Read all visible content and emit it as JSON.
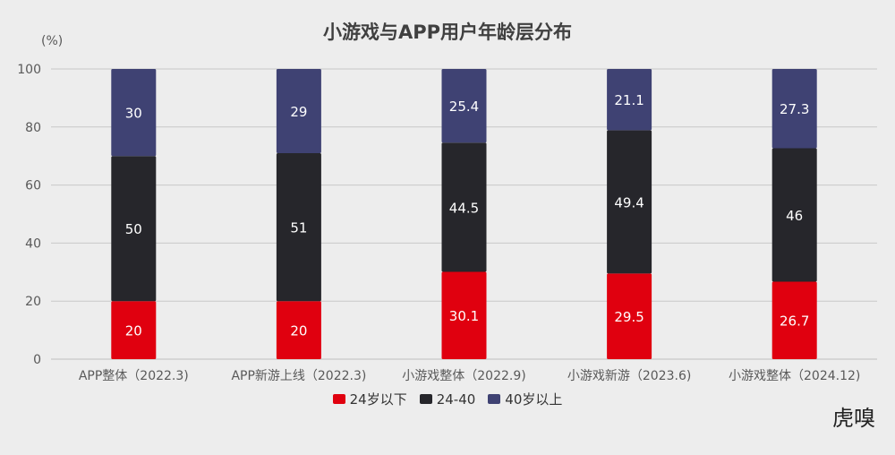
{
  "chart_data": {
    "type": "stacked-bar",
    "title": "小游戏与APP用户年龄层分布",
    "ylabel": "(%)",
    "ylim": [
      0,
      100
    ],
    "yticks": [
      0,
      20,
      40,
      60,
      80,
      100
    ],
    "grid": true,
    "legend_position": "bottom",
    "categories": [
      "APP整体（2022.3)",
      "APP新游上线（2022.3)",
      "小游戏整体（2022.9)",
      "小游戏新游（2023.6)",
      "小游戏整体（2024.12)"
    ],
    "series": [
      {
        "name": "24岁以下",
        "color": "#e0000f",
        "values": [
          20,
          20,
          30.1,
          29.5,
          26.7
        ]
      },
      {
        "name": "24-40",
        "color": "#26262b",
        "values": [
          50,
          51,
          44.5,
          49.4,
          46
        ]
      },
      {
        "name": "40岁以上",
        "color": "#3f4273",
        "values": [
          30,
          29,
          25.4,
          21.1,
          27.3
        ]
      }
    ]
  },
  "watermark": "虎嗅"
}
